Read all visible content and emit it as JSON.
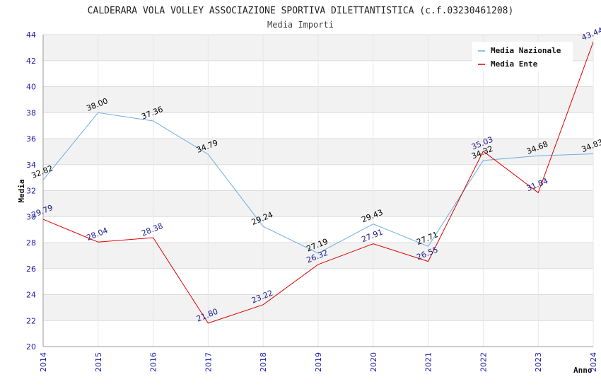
{
  "chart_data": {
    "type": "line",
    "title": "CALDERARA VOLA VOLLEY ASSOCIAZIONE SPORTIVA DILETTANTISTICA (c.f.03230461208)",
    "subtitle": "Media Importi",
    "xlabel": "Anno",
    "ylabel": "Media",
    "x": [
      "2014",
      "2015",
      "2016",
      "2017",
      "2018",
      "2019",
      "2020",
      "2021",
      "2022",
      "2023",
      "2024"
    ],
    "ylim": [
      20,
      44
    ],
    "yticks": [
      "20",
      "22",
      "24",
      "26",
      "28",
      "30",
      "32",
      "34",
      "36",
      "38",
      "40",
      "42",
      "44"
    ],
    "grid": true,
    "legend_position": "top-right",
    "series": [
      {
        "name": "Media Nazionale",
        "color": "#6aaee6",
        "label_color": "#000000",
        "values": [
          32.82,
          38.0,
          37.36,
          34.79,
          29.24,
          27.19,
          29.43,
          27.71,
          34.32,
          34.68,
          34.83
        ],
        "labels": [
          "32.82",
          "38.00",
          "37.36",
          "34.79",
          "29.24",
          "27.19",
          "29.43",
          "27.71",
          "34.32",
          "34.68",
          "34.83"
        ]
      },
      {
        "name": "Media Ente",
        "color": "#dd0000",
        "label_color": "#1a1a8c",
        "values": [
          29.79,
          28.04,
          28.38,
          21.8,
          23.22,
          26.32,
          27.91,
          26.55,
          35.03,
          31.84,
          43.44
        ],
        "labels": [
          "29.79",
          "28.04",
          "28.38",
          "21.80",
          "23.22",
          "26.32",
          "27.91",
          "26.55",
          "35.03",
          "31.84",
          "43.44"
        ]
      }
    ]
  }
}
